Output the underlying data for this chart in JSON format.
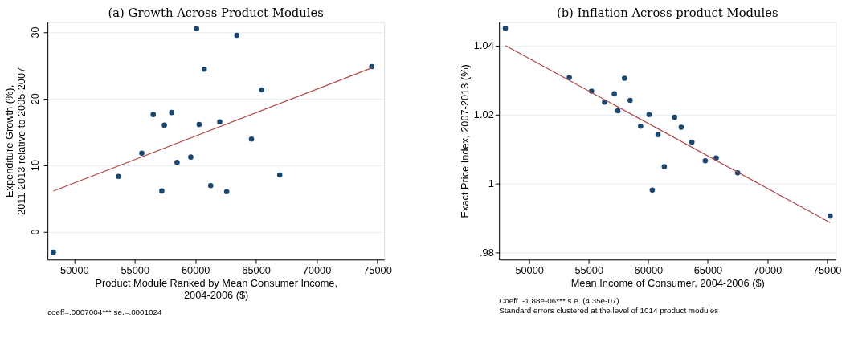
{
  "chart_data": [
    {
      "type": "scatter",
      "title": "(a) Growth Across Product Modules",
      "xlabel": "Product Module Ranked by Mean Consumer Income,\n2004-2006 ($)",
      "ylabel": "Expenditure Growth (%),\n2011-2013 relative to 2005-2007",
      "series": [
        {
          "color": "#1a476f",
          "marker": "circle",
          "x": [
            48280,
            53650,
            55580,
            56520,
            57230,
            57440,
            58050,
            58490,
            59620,
            60100,
            60310,
            60730,
            61260,
            62010,
            62580,
            63420,
            64630,
            65470,
            66960,
            74550
          ],
          "values": [
            -3.1,
            8.3,
            11.8,
            17.6,
            6.1,
            16.0,
            17.9,
            10.4,
            11.2,
            30.5,
            16.1,
            24.4,
            6.9,
            16.5,
            6.0,
            29.5,
            13.9,
            21.3,
            8.5,
            24.8
          ]
        },
        {
          "type": "line",
          "color": "#b0484a",
          "x": [
            48280,
            74550
          ],
          "values": [
            6.1,
            24.6
          ]
        }
      ],
      "xlim": [
        47800,
        75580
      ],
      "ylim": [
        -4.2,
        31.5
      ],
      "xticks": [
        50000,
        55000,
        60000,
        65000,
        70000,
        75000
      ],
      "yticks": [
        0,
        10,
        20,
        30
      ],
      "grid": "y",
      "annotations": [
        "coeff=.0007004*** se.=.0001024"
      ]
    },
    {
      "type": "scatter",
      "title": "(b)  Inflation Across product Modules",
      "xlabel": "Mean Income of Consumer, 2004-2006 ($)",
      "ylabel": "Exact Price Index, 2007-2013 (%)",
      "series": [
        {
          "color": "#1a476f",
          "marker": "circle",
          "x": [
            48000,
            53370,
            55240,
            56330,
            57150,
            57450,
            58010,
            58480,
            59360,
            60070,
            60340,
            60820,
            61350,
            62210,
            62770,
            63670,
            64790,
            65710,
            67510,
            75280
          ],
          "values": [
            1.045,
            1.0307,
            1.0268,
            1.0236,
            1.026,
            1.0211,
            1.0305,
            1.0241,
            1.0166,
            1.02,
            0.9981,
            1.0142,
            1.0049,
            1.0192,
            1.0163,
            1.012,
            1.0066,
            1.0074,
            1.0031,
            0.9906
          ]
        },
        {
          "type": "line",
          "color": "#b0484a",
          "x": [
            48000,
            75280
          ],
          "values": [
            1.04,
            0.9887
          ]
        }
      ],
      "xlim": [
        47470,
        75750
      ],
      "ylim": [
        0.978,
        1.0468
      ],
      "xticks": [
        50000,
        55000,
        60000,
        65000,
        70000,
        75000
      ],
      "yticks": [
        {
          "value": 0.98,
          "label": ".98"
        },
        1,
        1.02,
        1.04
      ],
      "grid": "y",
      "annotations": [
        "Coeff. -1.88e-06***  s.e. (4.35e-07)",
        "Standard errors clustered at the level of 1014 product modules"
      ]
    }
  ]
}
